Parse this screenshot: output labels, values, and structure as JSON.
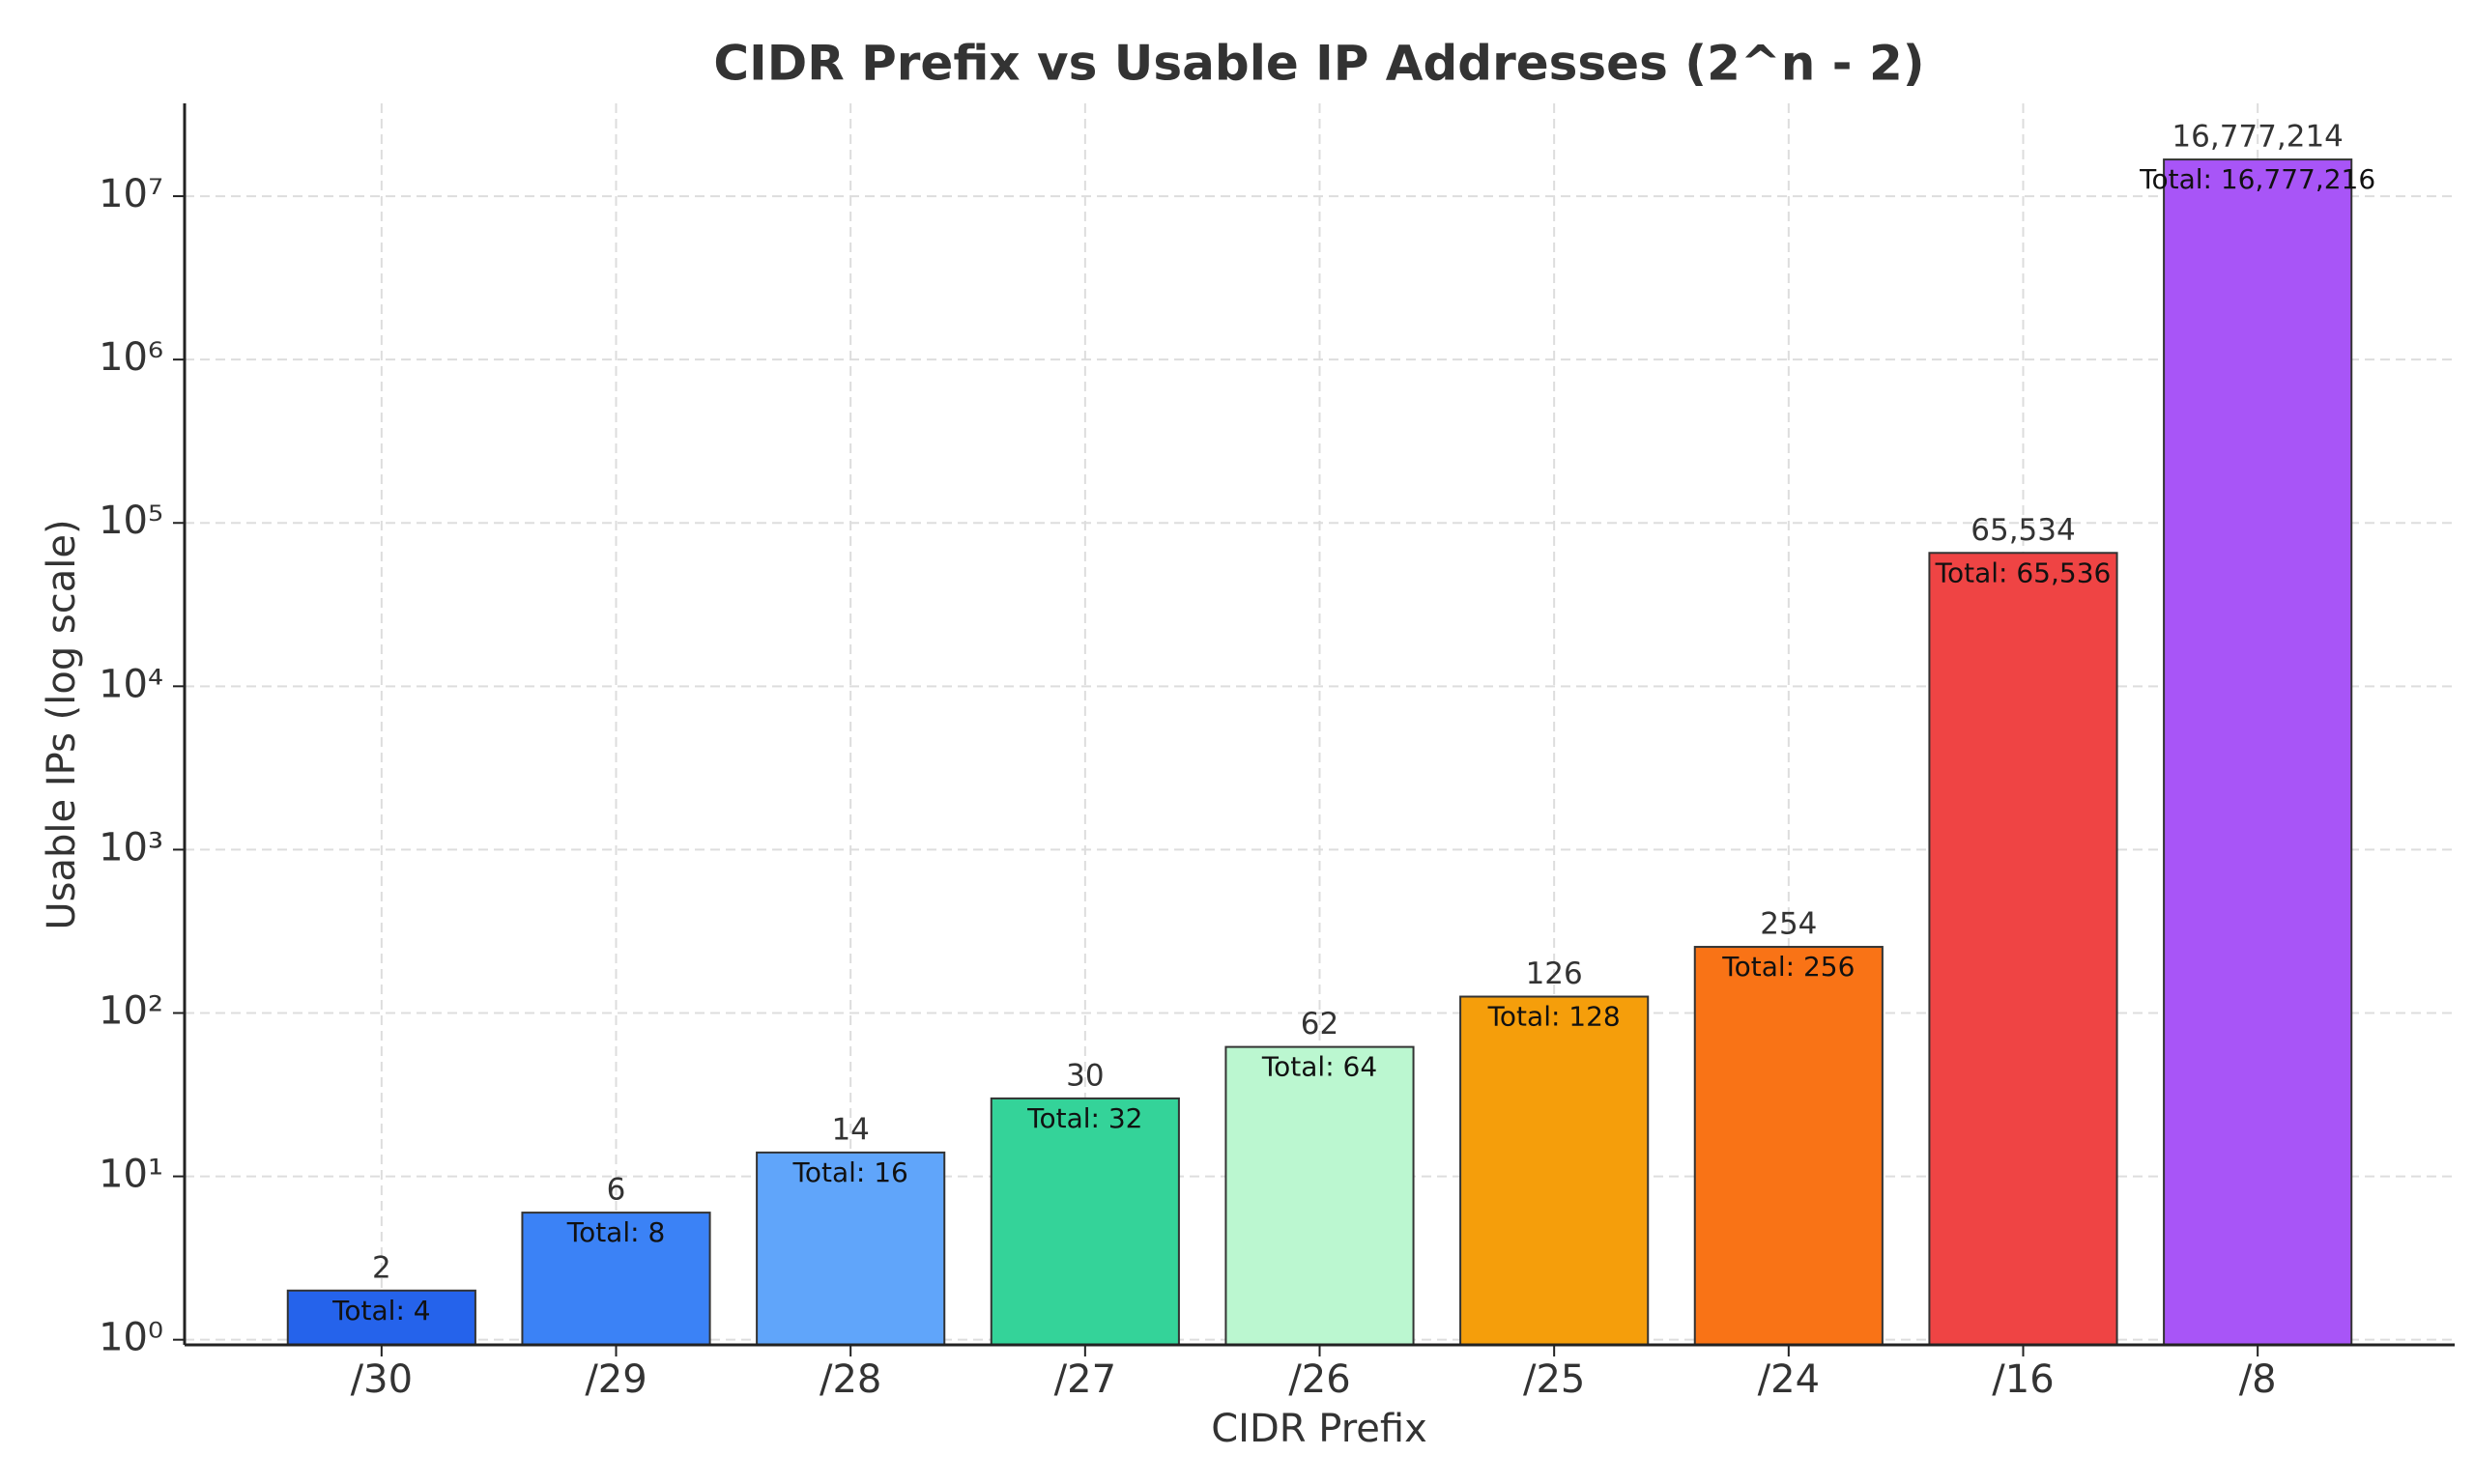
{
  "chart_data": {
    "type": "bar",
    "title": "CIDR Prefix vs Usable IP Addresses (2^n - 2)",
    "xlabel": "CIDR Prefix",
    "ylabel": "Usable IPs (log scale)",
    "categories": [
      "/30",
      "/29",
      "/28",
      "/27",
      "/26",
      "/25",
      "/24",
      "/16",
      "/8"
    ],
    "values": [
      2,
      6,
      14,
      30,
      62,
      126,
      254,
      65534,
      16777214
    ],
    "value_labels": [
      "2",
      "6",
      "14",
      "30",
      "62",
      "126",
      "254",
      "65,534",
      "16,777,214"
    ],
    "annotations": [
      "Total: 4",
      "Total: 8",
      "Total: 16",
      "Total: 32",
      "Total: 64",
      "Total: 128",
      "Total: 256",
      "Total: 65,536",
      "Total: 16,777,216"
    ],
    "colors": [
      "#2563eb",
      "#3b82f6",
      "#60a5fa",
      "#34d399",
      "#bbf7d0",
      "#f59e0b",
      "#f97316",
      "#ef4444",
      "#a855f7"
    ],
    "ylim": [
      0.93,
      37000000
    ],
    "yscale": "log",
    "yticks": [
      {
        "value": 1,
        "label": "10⁰"
      },
      {
        "value": 10,
        "label": "10¹"
      },
      {
        "value": 100,
        "label": "10²"
      },
      {
        "value": 1000,
        "label": "10³"
      },
      {
        "value": 10000,
        "label": "10⁴"
      },
      {
        "value": 100000,
        "label": "10⁵"
      },
      {
        "value": 1000000,
        "label": "10⁶"
      },
      {
        "value": 10000000,
        "label": "10⁷"
      }
    ],
    "grid": true
  }
}
